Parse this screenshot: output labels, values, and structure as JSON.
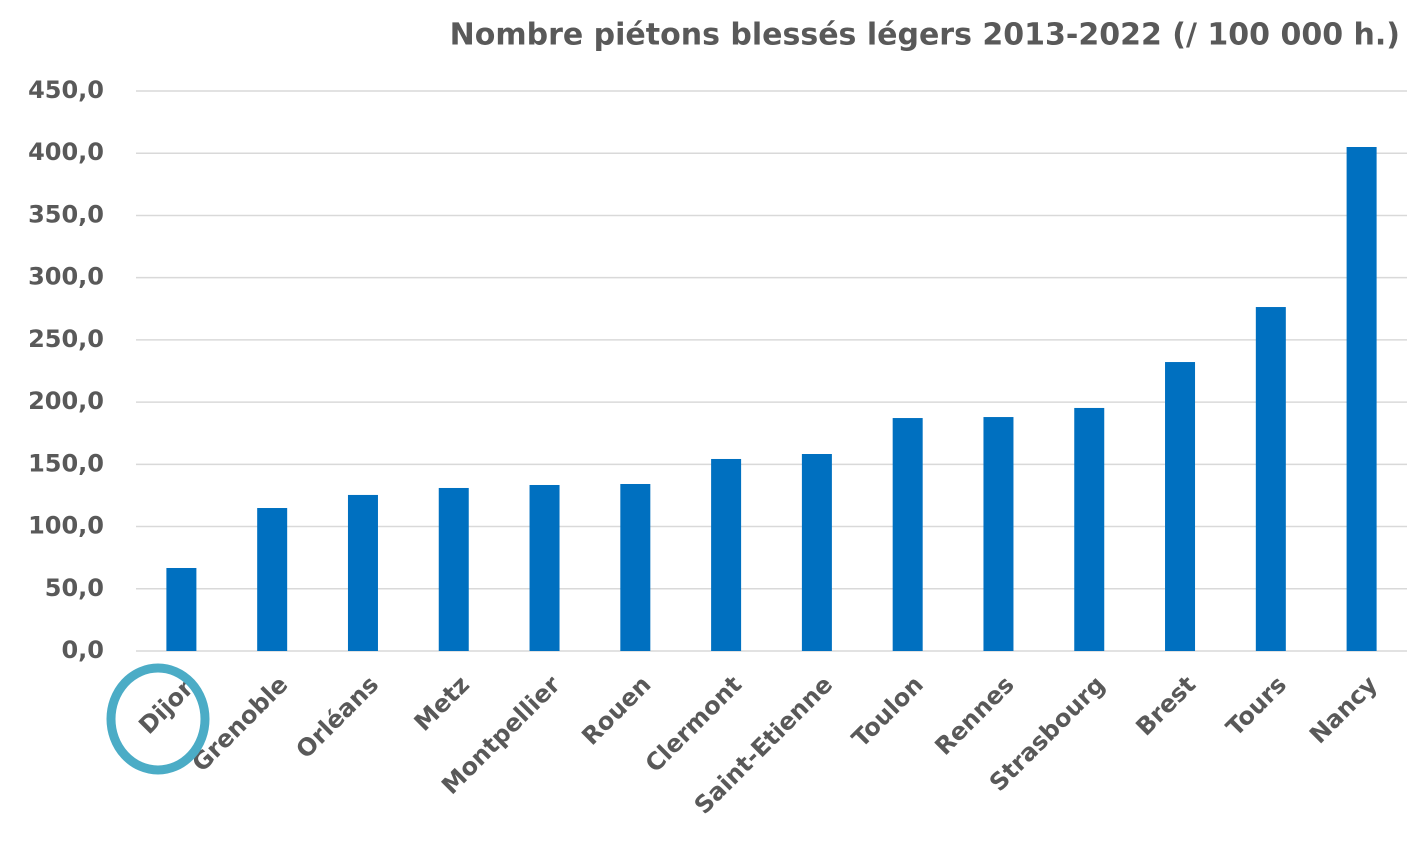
{
  "chart_data": {
    "type": "bar",
    "title": "Nombre piétons blessés légers 2013-2022 (/ 100 000 h.)",
    "categories": [
      "Dijon",
      "Grenoble",
      "Orléans",
      "Metz",
      "Montpellier",
      "Rouen",
      "Clermont",
      "Saint-Etienne",
      "Toulon",
      "Rennes",
      "Strasbourg",
      "Brest",
      "Tours",
      "Nancy"
    ],
    "values": [
      66.7,
      114.9,
      125.4,
      131.0,
      133.4,
      134.2,
      154.3,
      158.3,
      187.2,
      188.0,
      195.3,
      232.2,
      276.4,
      405.0
    ],
    "color": "#0070c0",
    "ylim": [
      0,
      450
    ],
    "yticks": [
      {
        "value": 0,
        "label": "0,0"
      },
      {
        "value": 50,
        "label": "50,0"
      },
      {
        "value": 100,
        "label": "100,0"
      },
      {
        "value": 150,
        "label": "150,0"
      },
      {
        "value": 200,
        "label": "200,0"
      },
      {
        "value": 250,
        "label": "250,0"
      },
      {
        "value": 300,
        "label": "300,0"
      },
      {
        "value": 350,
        "label": "350,0"
      },
      {
        "value": 400,
        "label": "400,0"
      },
      {
        "value": 450,
        "label": "450,0"
      }
    ],
    "grid": true
  }
}
